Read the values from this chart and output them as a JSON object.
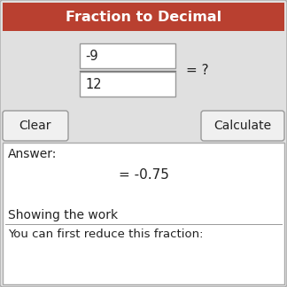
{
  "title": "Fraction to Decimal",
  "title_bg": "#b94030",
  "title_color": "#ffffff",
  "title_fontsize": 11.5,
  "bg_color": "#e0e0e0",
  "panel_bg": "#ffffff",
  "border_color": "#aaaaaa",
  "numerator": "-9",
  "denominator": "12",
  "equals_text": "= ?",
  "clear_label": "Clear",
  "calculate_label": "Calculate",
  "answer_label": "Answer:",
  "answer_value": "= -0.75",
  "showing_work_label": "Showing the work",
  "reduce_label": "You can first reduce this fraction:",
  "input_box_color": "#ffffff",
  "input_border_color": "#999999",
  "button_bg": "#f0f0f0",
  "button_border": "#999999",
  "text_color": "#222222",
  "showing_work_color": "#222222"
}
